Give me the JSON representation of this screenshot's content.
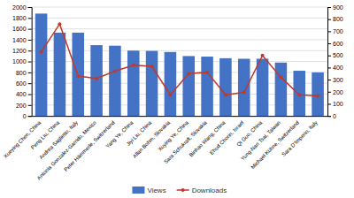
{
  "chart_data": {
    "type": "bar",
    "categories": [
      "Xueying Chen, China",
      "Peng Liu, China",
      "Andrea Saglietto, Italy",
      "Antonia Gonzalez-Garrido, Mexico",
      "Peter Hämmerle, Switzerland",
      "Yang Ye, China",
      "Jiyi Liu, China",
      "Allan Bohm, Slovakia",
      "Xuying Ye, China",
      "Sara Schukraft, Slovakia",
      "Binhao Wang, China",
      "Ehud Chorin, Israel",
      "Qi Guo, China",
      "Yung-Nan Tsai, Taiwan",
      "Michael Kühne, Switzerland",
      "Sara D'Imperio, Italy"
    ],
    "series": [
      {
        "name": "Views",
        "type": "bar",
        "color": "#4472C4",
        "values": [
          1880,
          1530,
          1530,
          1300,
          1290,
          1200,
          1195,
          1175,
          1100,
          1090,
          1060,
          1050,
          1050,
          980,
          830,
          800
        ]
      },
      {
        "name": "Downloads",
        "type": "line",
        "color": "#C0392B",
        "marker": "circle",
        "axis": "y2",
        "values": [
          530,
          760,
          330,
          310,
          370,
          420,
          410,
          175,
          350,
          360,
          175,
          195,
          500,
          320,
          175,
          165
        ]
      }
    ],
    "ylim": [
      0,
      2000
    ],
    "yticks": [
      0,
      200,
      400,
      600,
      800,
      1000,
      1200,
      1400,
      1600,
      1800,
      2000
    ],
    "y2lim": [
      0,
      900
    ],
    "y2ticks": [
      0,
      100,
      200,
      300,
      400,
      500,
      600,
      700,
      800,
      900
    ],
    "grid": true,
    "legend": "bottom"
  }
}
